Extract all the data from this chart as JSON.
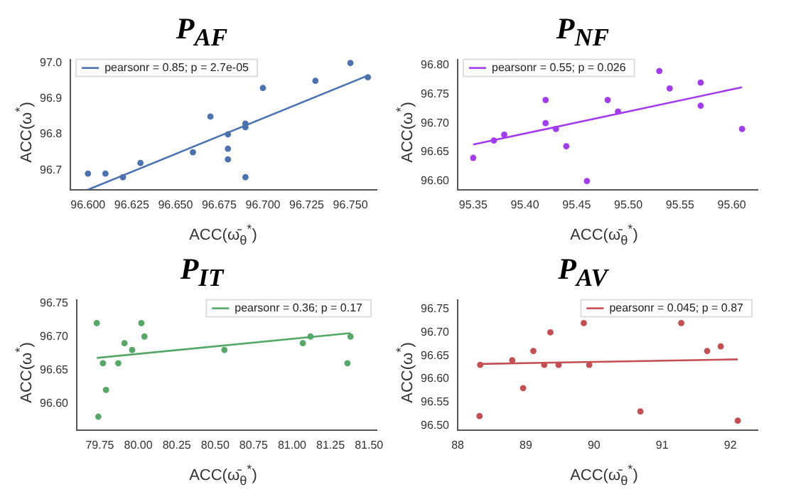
{
  "chart_data": [
    {
      "type": "scatter",
      "title": "P$_{AF}$",
      "xlabel": "ACC(ω̄$_{θ}$$^{*}$)",
      "ylabel": "ACC(ω$^{*}$)",
      "legend": "top left",
      "xlim": [
        96.59,
        96.765
      ],
      "xticks": [
        {
          "value": 96.6,
          "label": "96.600"
        },
        {
          "value": 96.625,
          "label": "96.625"
        },
        {
          "value": 96.65,
          "label": "96.650"
        },
        {
          "value": 96.675,
          "label": "96.675"
        },
        {
          "value": 96.7,
          "label": "96.700"
        },
        {
          "value": 96.725,
          "label": "96.725"
        },
        {
          "value": 96.75,
          "label": "96.750"
        }
      ],
      "ylim": [
        96.645,
        97.01
      ],
      "yticks": [
        {
          "value": 96.7,
          "label": "96.7"
        },
        {
          "value": 96.8,
          "label": "96.8"
        },
        {
          "value": 96.9,
          "label": "96.9"
        },
        {
          "value": 97.0,
          "label": "97.0"
        }
      ],
      "series": [
        {
          "color": "#4c72b0",
          "marker": "circle",
          "x": [
            96.6,
            96.61,
            96.62,
            96.63,
            96.66,
            96.67,
            96.68,
            96.68,
            96.68,
            96.69,
            96.69,
            96.69,
            96.7,
            96.73,
            96.75,
            96.76
          ],
          "values": [
            96.69,
            96.69,
            96.68,
            96.72,
            96.75,
            96.85,
            96.8,
            96.76,
            96.73,
            96.83,
            96.82,
            96.68,
            96.93,
            96.95,
            97.0,
            96.96
          ]
        },
        {
          "type": "line",
          "marker": "none",
          "name": "pearsonr = 0.85; p = 2.7e-05",
          "color": "#4c72b0",
          "x": [
            96.6,
            96.76
          ],
          "values": [
            96.645,
            96.965
          ]
        }
      ]
    },
    {
      "type": "scatter",
      "title": "P$_{NF}$",
      "xlabel": "ACC(ω̄$_{θ}$$^{*}$)",
      "ylabel": "ACC(ω$^{*}$)",
      "legend": "top left",
      "xlim": [
        95.335,
        95.625
      ],
      "xticks": [
        {
          "value": 95.35,
          "label": "95.35"
        },
        {
          "value": 95.4,
          "label": "95.40"
        },
        {
          "value": 95.45,
          "label": "95.45"
        },
        {
          "value": 95.5,
          "label": "95.50"
        },
        {
          "value": 95.55,
          "label": "95.55"
        },
        {
          "value": 95.6,
          "label": "95.60"
        }
      ],
      "ylim": [
        96.585,
        96.81
      ],
      "yticks": [
        {
          "value": 96.6,
          "label": "96.60"
        },
        {
          "value": 96.65,
          "label": "96.65"
        },
        {
          "value": 96.7,
          "label": "96.70"
        },
        {
          "value": 96.75,
          "label": "96.75"
        },
        {
          "value": 96.8,
          "label": "96.80"
        }
      ],
      "series": [
        {
          "color": "#a23cf0",
          "marker": "circle",
          "x": [
            95.35,
            95.37,
            95.38,
            95.42,
            95.42,
            95.43,
            95.44,
            95.46,
            95.48,
            95.49,
            95.53,
            95.54,
            95.57,
            95.57,
            95.61
          ],
          "values": [
            96.64,
            96.67,
            96.68,
            96.74,
            96.7,
            96.69,
            96.66,
            96.6,
            96.74,
            96.72,
            96.79,
            96.76,
            96.77,
            96.73,
            96.69
          ]
        },
        {
          "type": "line",
          "marker": "none",
          "name": "pearsonr = 0.55; p = 0.026",
          "color": "#a23cf0",
          "x": [
            95.35,
            95.61
          ],
          "values": [
            96.663,
            96.762
          ]
        }
      ]
    },
    {
      "type": "scatter",
      "title": "P$_{IT}$",
      "xlabel": "ACC(ω̄$_{θ}$$^{*}$)",
      "ylabel": "ACC(ω$^{*}$)",
      "legend": "top right",
      "xlim": [
        79.6,
        81.55
      ],
      "xticks": [
        {
          "value": 79.75,
          "label": "79.75"
        },
        {
          "value": 80.0,
          "label": "80.00"
        },
        {
          "value": 80.25,
          "label": "80.25"
        },
        {
          "value": 80.5,
          "label": "80.50"
        },
        {
          "value": 80.75,
          "label": "80.75"
        },
        {
          "value": 81.0,
          "label": "81.00"
        },
        {
          "value": 81.25,
          "label": "81.25"
        },
        {
          "value": 81.5,
          "label": "81.50"
        }
      ],
      "ylim": [
        96.56,
        96.755
      ],
      "yticks": [
        {
          "value": 96.6,
          "label": "96.60"
        },
        {
          "value": 96.65,
          "label": "96.65"
        },
        {
          "value": 96.7,
          "label": "96.70"
        },
        {
          "value": 96.75,
          "label": "96.75"
        }
      ],
      "series": [
        {
          "color": "#55a868",
          "marker": "circle",
          "x": [
            79.73,
            79.74,
            79.77,
            79.79,
            79.87,
            79.91,
            79.96,
            80.02,
            80.04,
            80.56,
            81.07,
            81.12,
            81.36,
            81.38
          ],
          "values": [
            96.72,
            96.58,
            96.66,
            96.62,
            96.66,
            96.69,
            96.68,
            96.72,
            96.7,
            96.68,
            96.69,
            96.7,
            96.66,
            96.7
          ]
        },
        {
          "type": "line",
          "marker": "none",
          "name": "pearsonr = 0.36; p = 0.17",
          "color": "#55a868",
          "x": [
            79.73,
            81.38
          ],
          "values": [
            96.668,
            96.705
          ]
        }
      ]
    },
    {
      "type": "scatter",
      "title": "P$_{AV}$",
      "xlabel": "ACC(ω̄$_{θ}$$^{*}$)",
      "ylabel": "ACC(ω$^{*}$)",
      "legend": "top right",
      "xlim": [
        88.0,
        92.4
      ],
      "xticks": [
        {
          "value": 88,
          "label": "88"
        },
        {
          "value": 89,
          "label": "89"
        },
        {
          "value": 90,
          "label": "90"
        },
        {
          "value": 91,
          "label": "91"
        },
        {
          "value": 92,
          "label": "92"
        }
      ],
      "ylim": [
        96.49,
        96.77
      ],
      "yticks": [
        {
          "value": 96.5,
          "label": "96.50"
        },
        {
          "value": 96.55,
          "label": "96.55"
        },
        {
          "value": 96.6,
          "label": "96.60"
        },
        {
          "value": 96.65,
          "label": "96.65"
        },
        {
          "value": 96.7,
          "label": "96.70"
        },
        {
          "value": 96.75,
          "label": "96.75"
        }
      ],
      "series": [
        {
          "color": "#c44e52",
          "marker": "circle",
          "x": [
            88.32,
            88.33,
            88.8,
            88.96,
            89.11,
            89.27,
            89.36,
            89.48,
            89.85,
            89.93,
            90.68,
            91.28,
            91.66,
            91.86,
            92.11
          ],
          "values": [
            96.52,
            96.63,
            96.64,
            96.58,
            96.66,
            96.63,
            96.7,
            96.63,
            96.72,
            96.63,
            96.53,
            96.72,
            96.66,
            96.67,
            96.51
          ]
        },
        {
          "type": "line",
          "marker": "none",
          "name": "pearsonr = 0.045; p = 0.87",
          "color": "#c44e52",
          "x": [
            88.32,
            92.11
          ],
          "values": [
            96.632,
            96.642
          ]
        }
      ]
    }
  ]
}
